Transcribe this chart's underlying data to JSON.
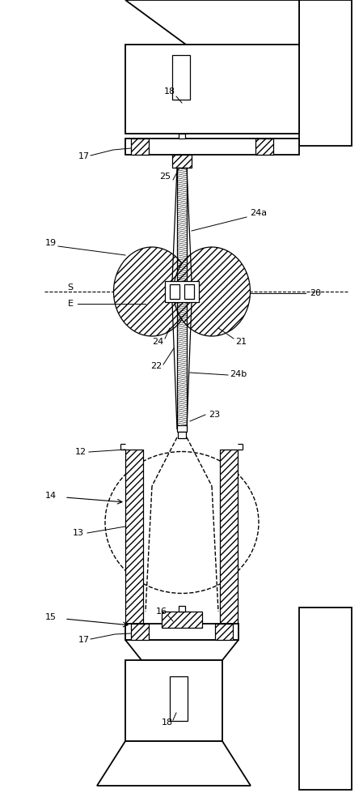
{
  "bg_color": "#ffffff",
  "fig_width": 4.49,
  "fig_height": 10.0,
  "dpi": 100,
  "labels": {
    "18_top": [
      218,
      115,
      "18"
    ],
    "17_top": [
      105,
      192,
      "17"
    ],
    "25": [
      205,
      215,
      "25"
    ],
    "19": [
      62,
      295,
      "19"
    ],
    "24a": [
      320,
      265,
      "24a"
    ],
    "S": [
      88,
      355,
      "S"
    ],
    "E": [
      88,
      375,
      "E"
    ],
    "20": [
      390,
      360,
      "20"
    ],
    "24": [
      195,
      420,
      "24"
    ],
    "21": [
      295,
      420,
      "21"
    ],
    "22": [
      190,
      450,
      "22"
    ],
    "24b": [
      290,
      460,
      "24b"
    ],
    "23": [
      265,
      510,
      "23"
    ],
    "12": [
      100,
      560,
      "12"
    ],
    "14": [
      62,
      610,
      "14"
    ],
    "13": [
      95,
      655,
      "13"
    ],
    "15": [
      62,
      760,
      "15"
    ],
    "17_bot": [
      105,
      790,
      "17"
    ],
    "16": [
      218,
      775,
      "16"
    ],
    "18_bot": [
      210,
      885,
      "18"
    ]
  }
}
